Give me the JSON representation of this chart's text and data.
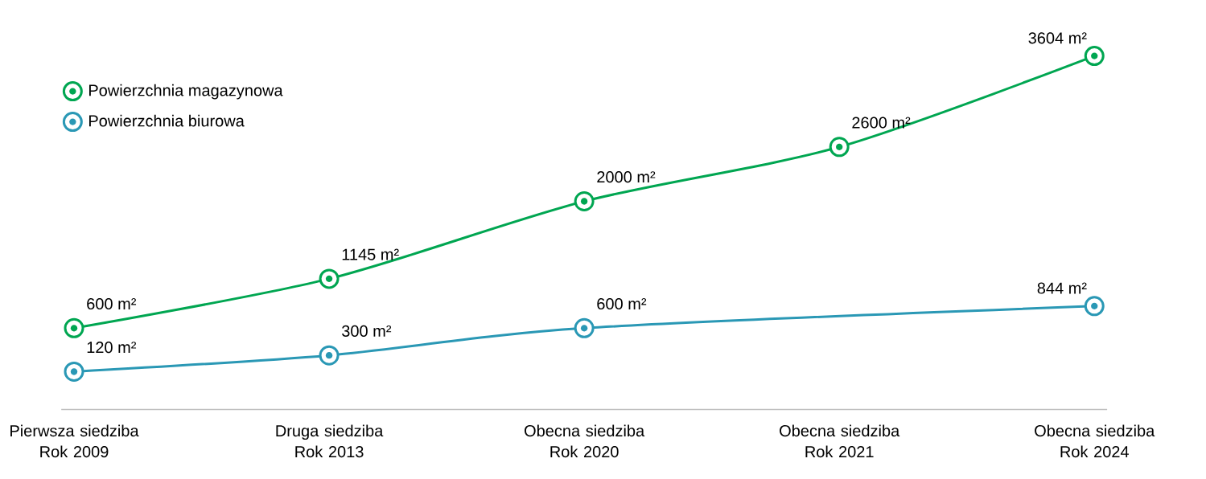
{
  "chart_data": {
    "type": "line",
    "categories": [
      "Pierwsza siedziba Rok 2009",
      "Druga siedziba Rok 2013",
      "Obecna siedziba Rok 2020",
      "Obecna siedziba Rok 2021",
      "Obecna siedziba Rok 2024"
    ],
    "series": [
      {
        "name": "Powierzchnia magazynowa",
        "color": "#00a651",
        "values": [
          600,
          1145,
          2000,
          2600,
          3604
        ],
        "value_labels": [
          "600 m²",
          "1145 m²",
          "2000 m²",
          "2600 m²",
          "3604 m²"
        ]
      },
      {
        "name": "Powierzchnia biurowa",
        "color": "#2a98b5",
        "values": [
          120,
          300,
          600,
          null,
          844
        ],
        "value_labels": [
          "120 m²",
          "300 m²",
          "600 m²",
          null,
          "844 m²"
        ]
      }
    ],
    "tick_labels": "x",
    "legend": "top left",
    "marker": "circle",
    "line_style": "solid"
  }
}
